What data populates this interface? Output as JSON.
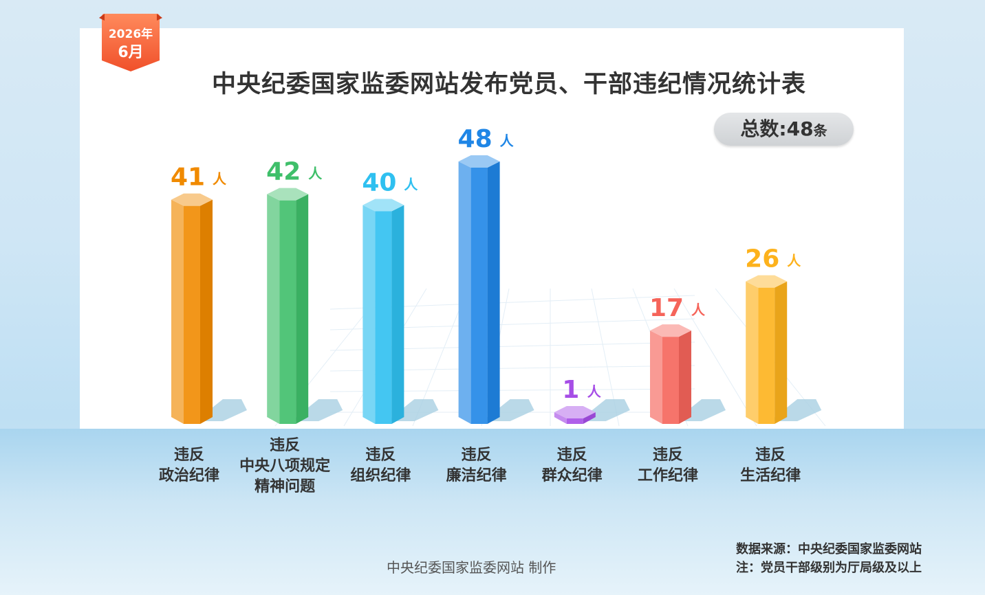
{
  "header": {
    "date_year": "2026年",
    "date_month": "6月",
    "title": "中央纪委国家监委网站发布党员、干部违纪情况统计表"
  },
  "total": {
    "label": "总数:",
    "value": "48",
    "unit": "条"
  },
  "chart_data": {
    "type": "bar",
    "title": "中央纪委国家监委网站发布党员、干部违纪情况统计表",
    "value_unit": "人",
    "categories": [
      [
        "违反",
        "政治纪律"
      ],
      [
        "违反",
        "中央八项规定",
        "精神问题"
      ],
      [
        "违反",
        "组织纪律"
      ],
      [
        "违反",
        "廉洁纪律"
      ],
      [
        "违反",
        "群众纪律"
      ],
      [
        "违反",
        "工作纪律"
      ],
      [
        "违反",
        "生活纪律"
      ]
    ],
    "values": [
      41,
      42,
      40,
      48,
      1,
      17,
      26
    ],
    "colors": [
      "#f08a00",
      "#3fbf6a",
      "#2fc0f0",
      "#1f86e6",
      "#a64ee6",
      "#f5645a",
      "#fdb21c"
    ],
    "ylim": [
      0,
      48
    ]
  },
  "footer": {
    "maker": "中央纪委国家监委网站 制作",
    "source": "数据来源：中央纪委国家监委网站",
    "note": "注：党员干部级别为厅局级及以上"
  }
}
